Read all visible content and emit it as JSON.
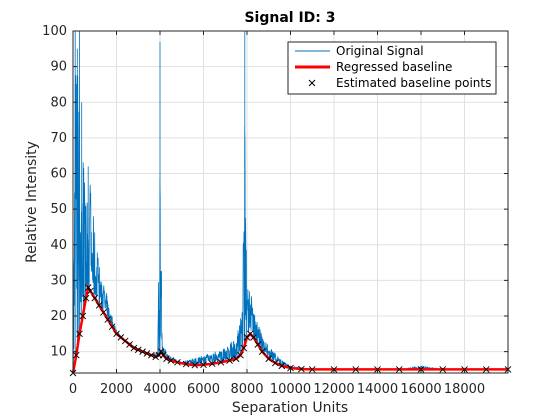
{
  "chart_data": {
    "type": "line",
    "title": "Signal ID: 3",
    "xlabel": "Separation Units",
    "ylabel": "Relative Intensity",
    "xlim": [
      0,
      20000
    ],
    "ylim": [
      4,
      100
    ],
    "xticks": [
      0,
      2000,
      4000,
      6000,
      8000,
      10000,
      12000,
      14000,
      16000,
      18000
    ],
    "yticks": [
      10,
      20,
      30,
      40,
      50,
      60,
      70,
      80,
      90,
      100
    ],
    "grid": true,
    "legend_position": "top-right",
    "colors": {
      "signal": "#0072bd",
      "baseline": "#ff0000",
      "points": "#000000"
    },
    "series": [
      {
        "name": "Original Signal",
        "style": "line",
        "peaks": [
          [
            0,
            4
          ],
          [
            100,
            100
          ],
          [
            200,
            95
          ],
          [
            300,
            100
          ],
          [
            400,
            80
          ],
          [
            500,
            60
          ],
          [
            600,
            55
          ],
          [
            700,
            62
          ],
          [
            800,
            58
          ],
          [
            900,
            50
          ],
          [
            1000,
            45
          ],
          [
            1100,
            40
          ],
          [
            1200,
            35
          ],
          [
            1400,
            30
          ],
          [
            1600,
            25
          ],
          [
            1800,
            20
          ],
          [
            2000,
            16
          ],
          [
            2400,
            13
          ],
          [
            2800,
            12
          ],
          [
            3200,
            10
          ],
          [
            3600,
            9
          ],
          [
            3900,
            10
          ],
          [
            4000,
            97
          ],
          [
            4100,
            12
          ],
          [
            4400,
            9
          ],
          [
            5000,
            7
          ],
          [
            5500,
            8
          ],
          [
            6000,
            9
          ],
          [
            6500,
            10
          ],
          [
            7000,
            11
          ],
          [
            7500,
            14
          ],
          [
            7800,
            22
          ],
          [
            7900,
            100
          ],
          [
            8000,
            30
          ],
          [
            8200,
            26
          ],
          [
            8400,
            20
          ],
          [
            8500,
            18
          ],
          [
            8700,
            15
          ],
          [
            9000,
            12
          ],
          [
            9500,
            8
          ],
          [
            10000,
            6
          ],
          [
            11000,
            5
          ],
          [
            12000,
            5
          ],
          [
            13000,
            5
          ],
          [
            14000,
            5
          ],
          [
            15000,
            5
          ],
          [
            16000,
            6
          ],
          [
            17000,
            5
          ],
          [
            18000,
            5
          ],
          [
            19000,
            5
          ],
          [
            20000,
            5
          ]
        ]
      },
      {
        "name": "Regressed baseline",
        "style": "line",
        "x": [
          0,
          150,
          300,
          450,
          600,
          700,
          800,
          1000,
          1200,
          1400,
          1600,
          1800,
          2000,
          2200,
          2400,
          2600,
          2800,
          3000,
          3200,
          3400,
          3600,
          3800,
          3950,
          4050,
          4150,
          4300,
          4500,
          4800,
          5200,
          5600,
          6000,
          6400,
          6800,
          7200,
          7500,
          7700,
          7850,
          8000,
          8150,
          8300,
          8500,
          8700,
          9000,
          9300,
          9600,
          10000,
          10500,
          11000,
          12000,
          13000,
          14000,
          15000,
          16000,
          17000,
          18000,
          19000,
          20000
        ],
        "y": [
          4,
          9,
          15,
          20,
          25,
          28,
          27,
          25,
          23,
          21,
          19,
          17,
          15,
          14,
          13,
          12,
          11,
          10.5,
          10,
          9.5,
          9,
          8.5,
          9,
          10,
          9,
          8,
          7.5,
          7,
          6.5,
          6.2,
          6.3,
          6.6,
          7,
          7.5,
          8,
          9,
          11,
          14,
          15,
          14,
          12,
          10,
          8,
          6.8,
          6,
          5.4,
          5.1,
          5,
          5,
          5,
          5,
          5,
          5,
          5,
          5,
          5,
          5
        ]
      },
      {
        "name": "Estimated baseline points",
        "style": "markers-x",
        "x": [
          0,
          150,
          300,
          450,
          600,
          700,
          800,
          1000,
          1200,
          1400,
          1600,
          1800,
          2000,
          2200,
          2400,
          2600,
          2800,
          3000,
          3200,
          3400,
          3600,
          3800,
          3950,
          4050,
          4150,
          4300,
          4500,
          4800,
          5200,
          5600,
          6000,
          6400,
          6800,
          7200,
          7500,
          7700,
          7850,
          8000,
          8150,
          8300,
          8500,
          8700,
          9000,
          9300,
          9600,
          10000,
          10500,
          11000,
          12000,
          13000,
          14000,
          15000,
          16000,
          17000,
          18000,
          19000,
          20000
        ],
        "y": [
          4,
          9,
          15,
          20,
          25,
          28,
          27,
          25,
          23,
          21,
          19,
          17,
          15,
          14,
          13,
          12,
          11,
          10.5,
          10,
          9.5,
          9,
          8.5,
          9,
          10,
          9,
          8,
          7.5,
          7,
          6.5,
          6.2,
          6.3,
          6.6,
          7,
          7.5,
          8,
          9,
          11,
          14,
          15,
          14,
          12,
          10,
          8,
          6.8,
          6,
          5.4,
          5.1,
          5,
          5,
          5,
          5,
          5,
          5,
          5,
          5,
          5,
          5
        ]
      }
    ]
  }
}
